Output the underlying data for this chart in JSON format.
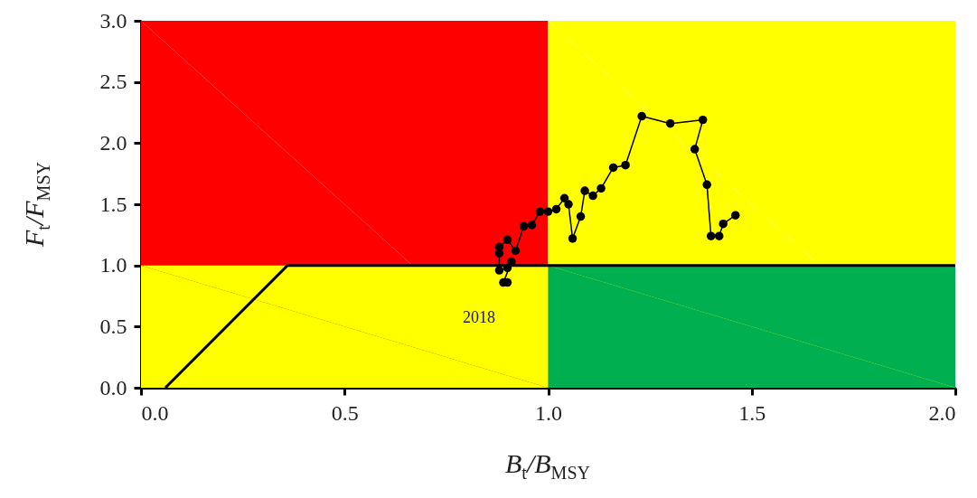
{
  "chart_data": {
    "type": "line",
    "xlabel": "B$_{t}$/B$_{MSY}$",
    "ylabel": "F$_{t}$/F$_{MSY}$",
    "xlim": [
      0,
      2
    ],
    "ylim": [
      0,
      3
    ],
    "xticks": [
      {
        "value": 0,
        "label": "0.0"
      },
      {
        "value": 0.5,
        "label": "0.5"
      },
      {
        "value": 1,
        "label": "1.0"
      },
      {
        "value": 1.5,
        "label": "1.5"
      },
      {
        "value": 2,
        "label": "2.0"
      }
    ],
    "yticks": [
      {
        "value": 0,
        "label": "0.0"
      },
      {
        "value": 0.5,
        "label": "0.5"
      },
      {
        "value": 1,
        "label": "1.0"
      },
      {
        "value": 1.5,
        "label": "1.5"
      },
      {
        "value": 2,
        "label": "2.0"
      },
      {
        "value": 2.5,
        "label": "2.5"
      },
      {
        "value": 3,
        "label": "3.0"
      }
    ],
    "grid": false,
    "series": [
      {
        "type": "area",
        "color": "#ff0000",
        "x": [
          0,
          1
        ],
        "values": [
          3,
          3
        ]
      },
      {
        "type": "area",
        "color": "#ffff00",
        "x": [
          1,
          2
        ],
        "values": [
          3,
          3
        ]
      },
      {
        "type": "area",
        "color": "#ffff00",
        "x": [
          0,
          1
        ],
        "values": [
          1,
          1
        ]
      },
      {
        "type": "area",
        "color": "#00b050",
        "x": [
          1,
          2
        ],
        "values": [
          1,
          1
        ]
      },
      {
        "color": "#000000",
        "marker": "none",
        "x": [
          0.06,
          0.36,
          2.0
        ],
        "values": [
          0,
          1,
          1
        ]
      },
      {
        "color": "#000000",
        "marker": "circle",
        "x": [
          1.46,
          1.43,
          1.42,
          1.4,
          1.39,
          1.36,
          1.38,
          1.3,
          1.23,
          1.19,
          1.16,
          1.13,
          1.11,
          1.09,
          1.08,
          1.06,
          1.05,
          1.04,
          1.02,
          1.0,
          0.98,
          0.96,
          0.94,
          0.92,
          0.9,
          0.88,
          0.88,
          0.88,
          0.9,
          0.91,
          0.89,
          0.9
        ],
        "values": [
          1.41,
          1.34,
          1.24,
          1.24,
          1.66,
          1.95,
          2.19,
          2.16,
          2.22,
          1.82,
          1.8,
          1.63,
          1.57,
          1.61,
          1.4,
          1.22,
          1.5,
          1.55,
          1.46,
          1.44,
          1.44,
          1.33,
          1.32,
          1.12,
          1.21,
          1.15,
          1.1,
          0.96,
          0.98,
          1.03,
          0.86,
          0.86
        ]
      }
    ],
    "annotations": [
      "2018"
    ]
  }
}
